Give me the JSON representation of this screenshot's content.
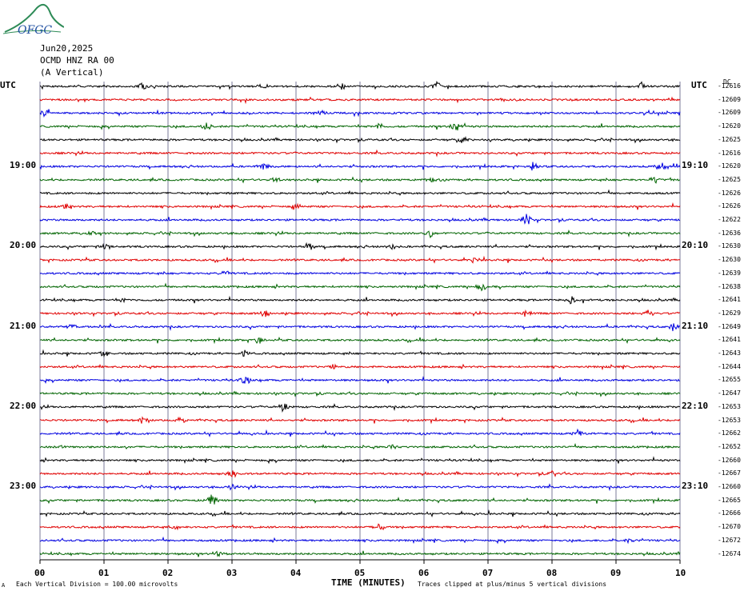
{
  "logo": {
    "text": "OFGC",
    "colors": {
      "ring": "#2e8b57",
      "text": "#1f4fa0"
    }
  },
  "header": {
    "date": "Jun20,2025",
    "station": "OCMD HNZ RA 00",
    "component": "(A Vertical)"
  },
  "utc_left": "UTC",
  "utc_right": "UTC",
  "dc_label": "DC",
  "left_times": [
    "19:00",
    "20:00",
    "21:00",
    "22:00",
    "23:00"
  ],
  "right_times": [
    "19:10",
    "20:10",
    "21:10",
    "22:10",
    "23:10"
  ],
  "dc_offsets": [
    "-12616",
    "-12609",
    "-12609",
    "-12620",
    "-12625",
    "-12616",
    "-12620",
    "-12625",
    "-12626",
    "-12626",
    "-12622",
    "-12636",
    "-12630",
    "-12630",
    "-12639",
    "-12638",
    "-12641",
    "-12629",
    "-12649",
    "-12641",
    "-12643",
    "-12644",
    "-12655",
    "-12647",
    "-12653",
    "-12653",
    "-12662",
    "-12652",
    "-12660",
    "-12667",
    "-12660",
    "-12665",
    "-12666",
    "-12670",
    "-12672",
    "-12674"
  ],
  "trace_colors": [
    "#000000",
    "#e00000",
    "#0000e0",
    "#006400"
  ],
  "x_tick_labels": [
    "00",
    "01",
    "02",
    "03",
    "04",
    "05",
    "06",
    "07",
    "08",
    "09",
    "10"
  ],
  "x_title": "TIME (MINUTES)",
  "scale_note": "Each Vertical Division =  100.00 microvolts",
  "clip_note": "Traces clipped at plus/minus 5 vertical divisions",
  "corner_mark": "A",
  "chart_data": {
    "type": "line",
    "title": "OCMD HNZ RA 00 (A Vertical) Jun20,2025",
    "xlabel": "TIME (MINUTES)",
    "xlim": [
      0,
      10
    ],
    "grid": true,
    "trace_count": 36,
    "trace_interval_minutes": 10,
    "hour_labels_left": [
      "19:00",
      "20:00",
      "21:00",
      "22:00",
      "23:00"
    ],
    "hour_labels_right": [
      "19:10",
      "20:10",
      "21:10",
      "22:10",
      "23:10"
    ],
    "vertical_division_microvolts": 100.0,
    "clip_divisions": 5,
    "events": [
      {
        "trace": 0,
        "minute": 1.6,
        "amp": 5
      },
      {
        "trace": 0,
        "minute": 3.5,
        "amp": 4
      },
      {
        "trace": 0,
        "minute": 4.7,
        "amp": 4
      },
      {
        "trace": 0,
        "minute": 6.2,
        "amp": 6
      },
      {
        "trace": 0,
        "minute": 9.4,
        "amp": 5
      },
      {
        "trace": 2,
        "minute": 0.1,
        "amp": 5
      },
      {
        "trace": 2,
        "minute": 4.4,
        "amp": 4
      },
      {
        "trace": 3,
        "minute": 2.6,
        "amp": 5
      },
      {
        "trace": 3,
        "minute": 5.3,
        "amp": 5
      },
      {
        "trace": 3,
        "minute": 6.5,
        "amp": 6
      },
      {
        "trace": 4,
        "minute": 6.6,
        "amp": 4
      },
      {
        "trace": 6,
        "minute": 3.5,
        "amp": 5
      },
      {
        "trace": 6,
        "minute": 7.7,
        "amp": 5
      },
      {
        "trace": 6,
        "minute": 9.7,
        "amp": 5
      },
      {
        "trace": 7,
        "minute": 3.7,
        "amp": 5
      },
      {
        "trace": 7,
        "minute": 6.1,
        "amp": 4
      },
      {
        "trace": 7,
        "minute": 9.6,
        "amp": 4
      },
      {
        "trace": 9,
        "minute": 0.4,
        "amp": 5
      },
      {
        "trace": 9,
        "minute": 4.0,
        "amp": 4
      },
      {
        "trace": 10,
        "minute": 7.6,
        "amp": 7
      },
      {
        "trace": 11,
        "minute": 0.8,
        "amp": 4
      },
      {
        "trace": 11,
        "minute": 6.1,
        "amp": 5
      },
      {
        "trace": 12,
        "minute": 1.0,
        "amp": 4
      },
      {
        "trace": 12,
        "minute": 4.2,
        "amp": 6
      },
      {
        "trace": 12,
        "minute": 5.5,
        "amp": 4
      },
      {
        "trace": 13,
        "minute": 6.8,
        "amp": 4
      },
      {
        "trace": 14,
        "minute": 2.9,
        "amp": 4
      },
      {
        "trace": 15,
        "minute": 6.9,
        "amp": 5
      },
      {
        "trace": 16,
        "minute": 1.3,
        "amp": 4
      },
      {
        "trace": 16,
        "minute": 8.3,
        "amp": 5
      },
      {
        "trace": 17,
        "minute": 3.5,
        "amp": 5
      },
      {
        "trace": 17,
        "minute": 7.6,
        "amp": 4
      },
      {
        "trace": 17,
        "minute": 9.5,
        "amp": 5
      },
      {
        "trace": 18,
        "minute": 0.5,
        "amp": 4
      },
      {
        "trace": 18,
        "minute": 9.9,
        "amp": 6
      },
      {
        "trace": 19,
        "minute": 3.4,
        "amp": 5
      },
      {
        "trace": 20,
        "minute": 1.0,
        "amp": 4
      },
      {
        "trace": 20,
        "minute": 3.2,
        "amp": 4
      },
      {
        "trace": 21,
        "minute": 4.6,
        "amp": 4
      },
      {
        "trace": 22,
        "minute": 3.2,
        "amp": 6
      },
      {
        "trace": 24,
        "minute": 3.8,
        "amp": 6
      },
      {
        "trace": 25,
        "minute": 1.6,
        "amp": 4
      },
      {
        "trace": 25,
        "minute": 2.2,
        "amp": 4
      },
      {
        "trace": 26,
        "minute": 8.4,
        "amp": 4
      },
      {
        "trace": 27,
        "minute": 0.3,
        "amp": 4
      },
      {
        "trace": 27,
        "minute": 5.5,
        "amp": 4
      },
      {
        "trace": 29,
        "minute": 3.0,
        "amp": 5
      },
      {
        "trace": 29,
        "minute": 8.0,
        "amp": 4
      },
      {
        "trace": 30,
        "minute": 3.0,
        "amp": 4
      },
      {
        "trace": 31,
        "minute": 2.7,
        "amp": 8
      },
      {
        "trace": 33,
        "minute": 2.1,
        "amp": 4
      },
      {
        "trace": 33,
        "minute": 5.3,
        "amp": 5
      },
      {
        "trace": 34,
        "minute": 9.2,
        "amp": 3
      },
      {
        "trace": 35,
        "minute": 2.8,
        "amp": 4
      }
    ]
  }
}
